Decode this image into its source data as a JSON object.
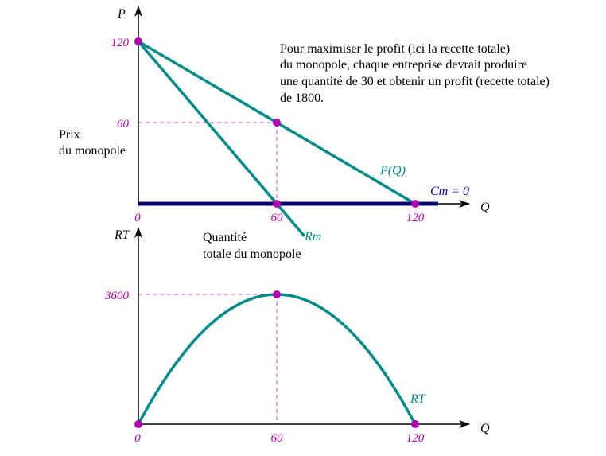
{
  "chart_data": [
    {
      "type": "line",
      "title": "",
      "y_axis_symbol": "P",
      "x_axis_symbol": "Q",
      "ylabel": [
        "Prix",
        "du monopole"
      ],
      "xlabel": [
        "Quantité",
        "totale du monopole"
      ],
      "xlim": [
        0,
        130
      ],
      "ylim": [
        0,
        130
      ],
      "x_ticks": [
        {
          "value": 0,
          "label": "0"
        },
        {
          "value": 60,
          "label": "60"
        },
        {
          "value": 120,
          "label": "120"
        }
      ],
      "y_ticks": [
        {
          "value": 60,
          "label": "60"
        },
        {
          "value": 120,
          "label": "120"
        }
      ],
      "series": [
        {
          "name": "P(Q)",
          "x": [
            0,
            120
          ],
          "y": [
            120,
            0
          ],
          "color": "#008b8b"
        },
        {
          "name": "Rm",
          "x": [
            0,
            72
          ],
          "y": [
            120,
            -24
          ],
          "color": "#008b8b"
        },
        {
          "name": "Cm = 0",
          "x": [
            0,
            130
          ],
          "y": [
            0,
            0
          ],
          "color": "#0000aa"
        }
      ],
      "points": [
        {
          "x": 0,
          "y": 120
        },
        {
          "x": 60,
          "y": 60
        },
        {
          "x": 60,
          "y": 0
        },
        {
          "x": 120,
          "y": 0
        }
      ],
      "guides": [
        {
          "from": [
            0,
            60
          ],
          "to": [
            60,
            60
          ]
        },
        {
          "from": [
            60,
            60
          ],
          "to": [
            60,
            0
          ]
        }
      ],
      "annotation": [
        "Pour maximiser le profit (ici la recette totale)",
        "du monopole, chaque entreprise devrait produire",
        "une quantité de 30 et obtenir un profit (recette totale)",
        "de 1800."
      ]
    },
    {
      "type": "line",
      "title": "",
      "y_axis_symbol": "RT",
      "x_axis_symbol": "Q",
      "xlim": [
        0,
        130
      ],
      "ylim": [
        0,
        3900
      ],
      "x_ticks": [
        {
          "value": 0,
          "label": "0"
        },
        {
          "value": 60,
          "label": "60"
        },
        {
          "value": 120,
          "label": "120"
        }
      ],
      "y_ticks": [
        {
          "value": 3600,
          "label": "3600"
        }
      ],
      "series": [
        {
          "name": "RT",
          "formula": "120Q - Q^2",
          "x": [
            0,
            10,
            20,
            30,
            40,
            50,
            60,
            70,
            80,
            90,
            100,
            110,
            120
          ],
          "y": [
            0,
            1100,
            2000,
            2700,
            3200,
            3500,
            3600,
            3500,
            3200,
            2700,
            2000,
            1100,
            0
          ],
          "color": "#008b8b"
        }
      ],
      "points": [
        {
          "x": 0,
          "y": 0
        },
        {
          "x": 60,
          "y": 3600
        },
        {
          "x": 120,
          "y": 0
        }
      ],
      "guides": [
        {
          "from": [
            0,
            3600
          ],
          "to": [
            60,
            3600
          ]
        },
        {
          "from": [
            60,
            3600
          ],
          "to": [
            60,
            0
          ]
        }
      ]
    }
  ],
  "colors": {
    "curve": "#008b8b",
    "cm_line": "#0000aa",
    "points": "#b000b0",
    "guides": "#dd44dd",
    "axis": "#000000"
  }
}
